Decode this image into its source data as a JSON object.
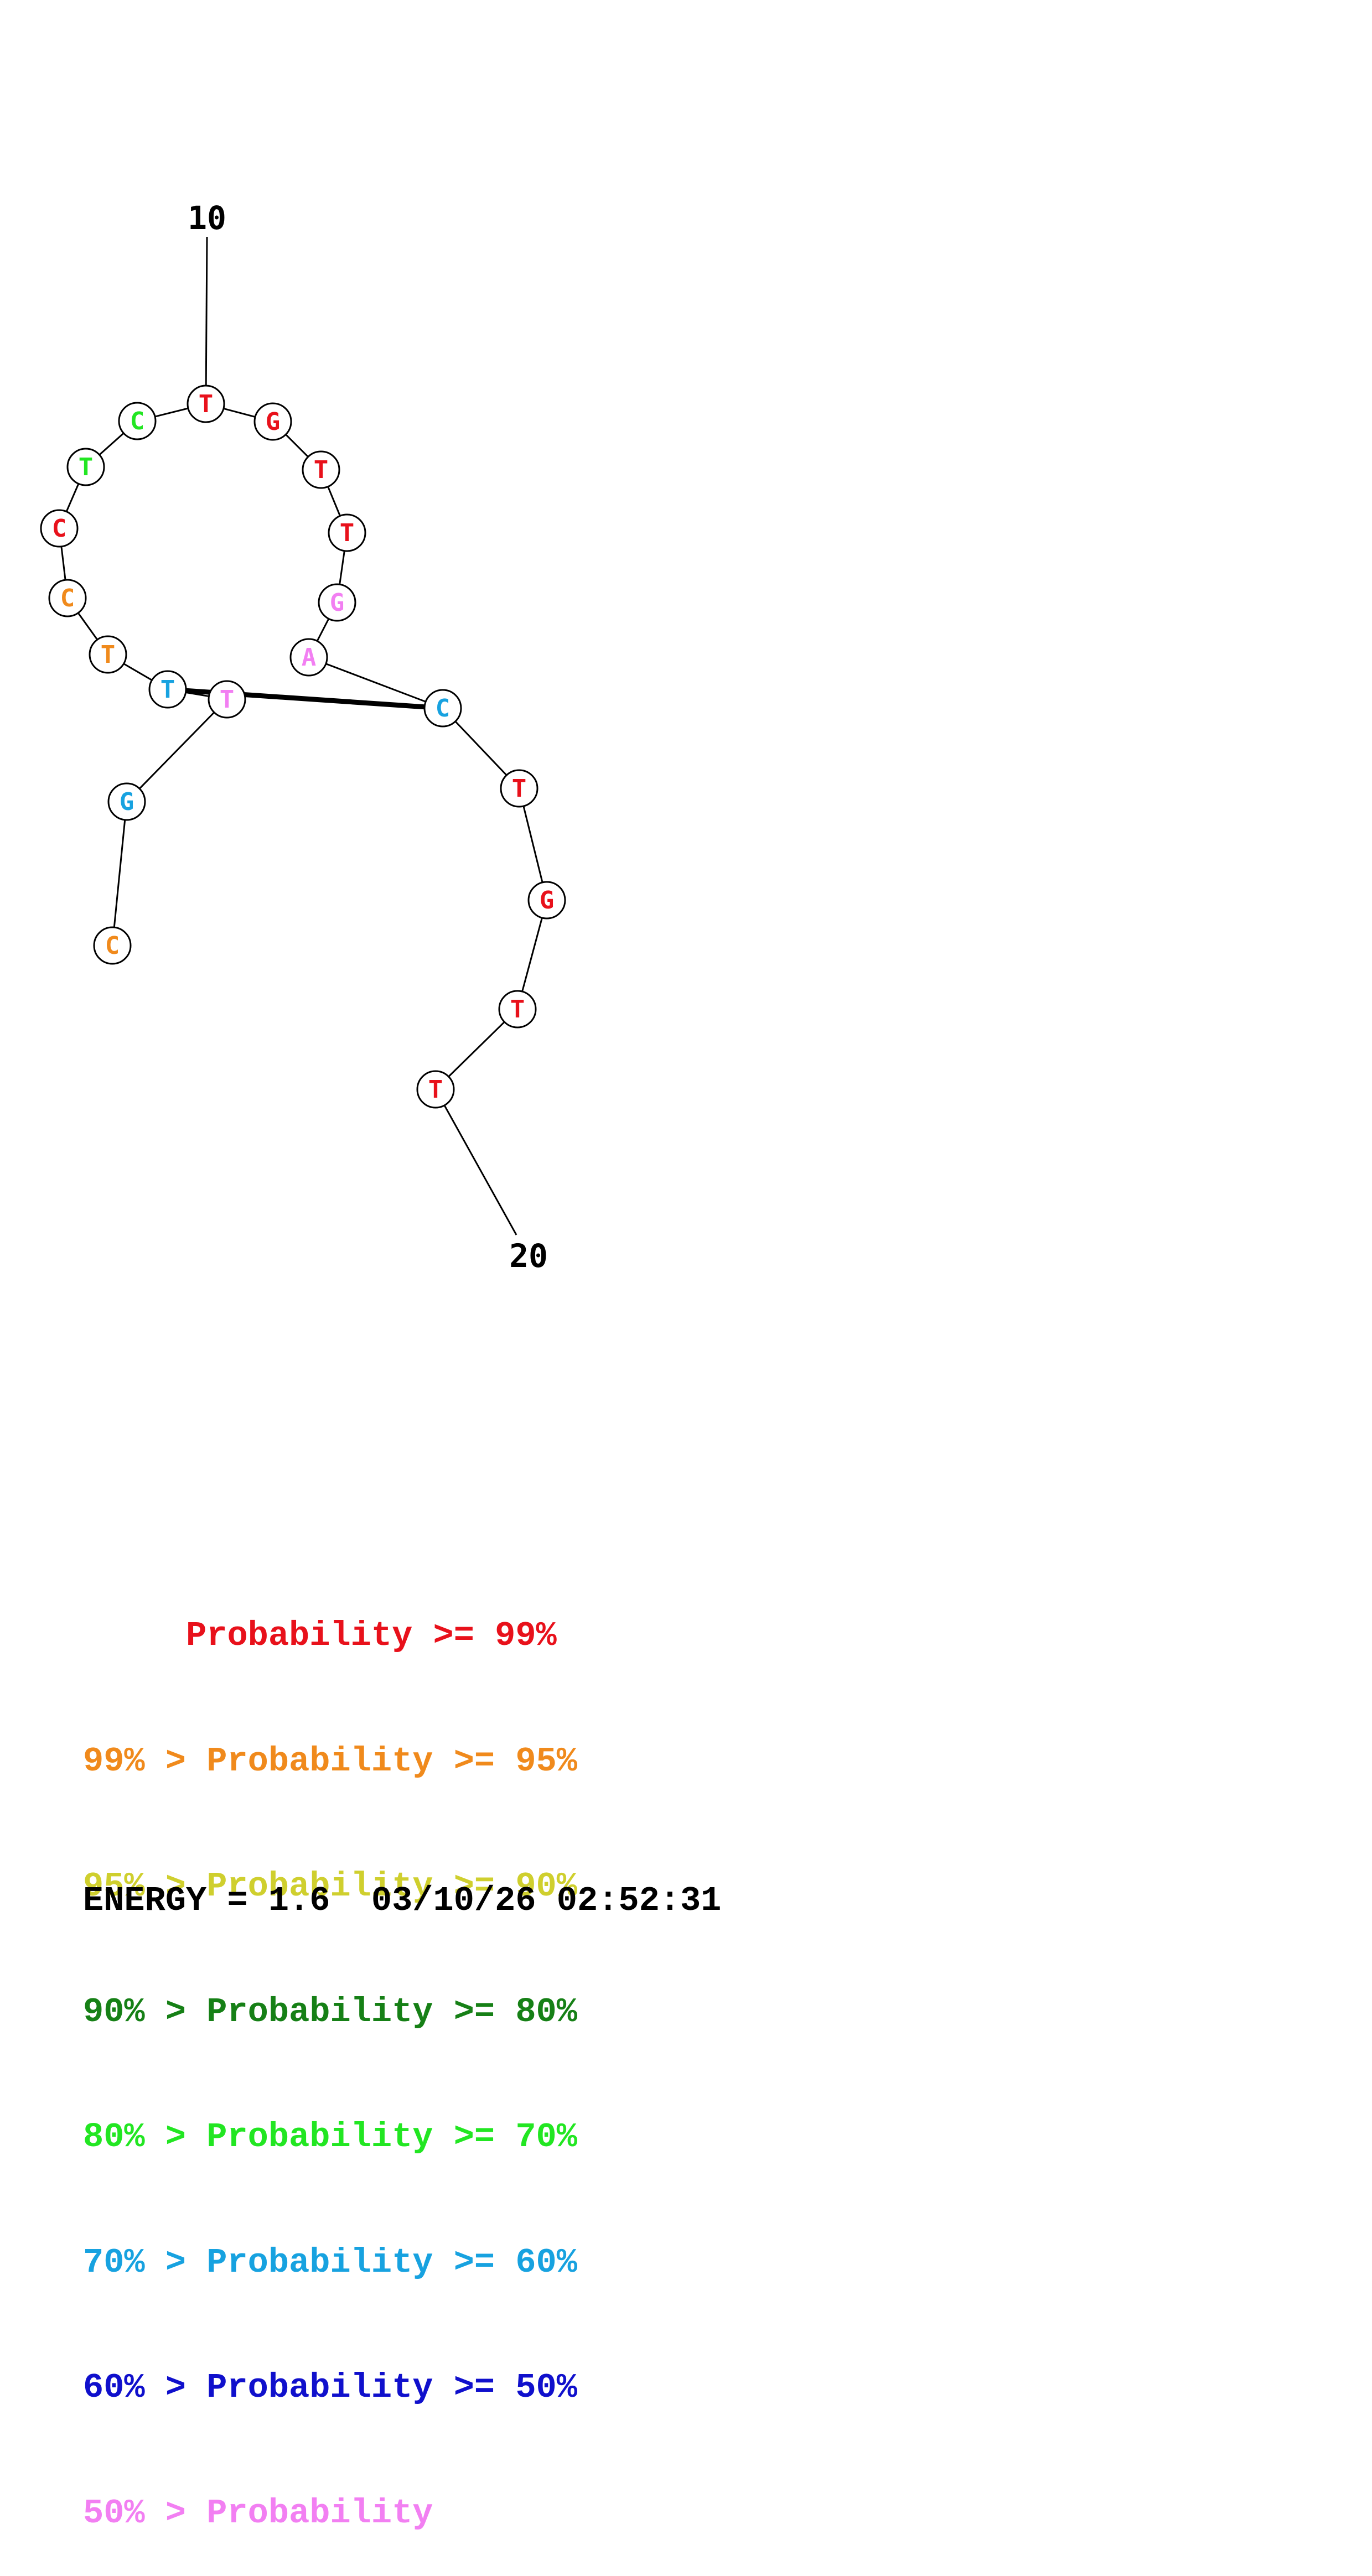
{
  "colors": {
    "p99": "#e8111b",
    "p95": "#f08a1c",
    "p90": "#cfcf2e",
    "p80": "#168016",
    "p70": "#22e622",
    "p60": "#17a2e0",
    "p50": "#1010cc",
    "plow": "#f27ff2"
  },
  "diagram": {
    "labels": {
      "start": "10",
      "end": "20"
    },
    "nucleotides": [
      {
        "base": "C",
        "color": "p95"
      },
      {
        "base": "G",
        "color": "p60"
      },
      {
        "base": "T",
        "color": "plow"
      },
      {
        "base": "T",
        "color": "p60"
      },
      {
        "base": "T",
        "color": "p95"
      },
      {
        "base": "C",
        "color": "p95"
      },
      {
        "base": "C",
        "color": "p99"
      },
      {
        "base": "T",
        "color": "p70"
      },
      {
        "base": "C",
        "color": "p70"
      },
      {
        "base": "T",
        "color": "p99"
      },
      {
        "base": "G",
        "color": "p99"
      },
      {
        "base": "T",
        "color": "p99"
      },
      {
        "base": "T",
        "color": "p99"
      },
      {
        "base": "G",
        "color": "plow"
      },
      {
        "base": "A",
        "color": "plow"
      },
      {
        "base": "C",
        "color": "p60"
      },
      {
        "base": "T",
        "color": "p99"
      },
      {
        "base": "G",
        "color": "p99"
      },
      {
        "base": "T",
        "color": "p99"
      },
      {
        "base": "T",
        "color": "p99"
      }
    ],
    "pairs": [
      [
        3,
        15
      ]
    ]
  },
  "legend": [
    {
      "text": "     Probability >= 99%",
      "color": "p99"
    },
    {
      "text": "99% > Probability >= 95%",
      "color": "p95"
    },
    {
      "text": "95% > Probability >= 90%",
      "color": "p90"
    },
    {
      "text": "90% > Probability >= 80%",
      "color": "p80"
    },
    {
      "text": "80% > Probability >= 70%",
      "color": "p70"
    },
    {
      "text": "70% > Probability >= 60%",
      "color": "p60"
    },
    {
      "text": "60% > Probability >= 50%",
      "color": "p50"
    },
    {
      "text": "50% > Probability",
      "color": "plow"
    }
  ],
  "footer": {
    "energy": "ENERGY = 1.6  03/10/26 02:52:31"
  }
}
